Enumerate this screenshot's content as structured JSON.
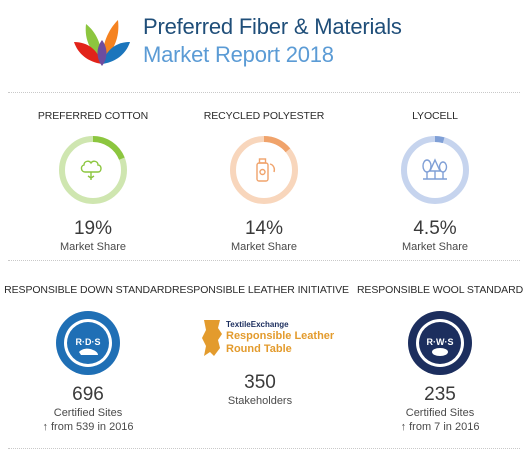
{
  "header": {
    "title_line1": "Preferred Fiber & Materials",
    "title_line2": "Market Report 2018",
    "logo_icon": "leaf-petals-logo"
  },
  "colors": {
    "title_dark": "#1f4e79",
    "title_light": "#5b9bd5",
    "cotton": "#8cc63f",
    "polyester": "#f0a36b",
    "lyocell": "#7f9fd6",
    "badge_blue": "#1f6fb5",
    "badge_navy": "#1c2e5e",
    "leather_orange": "#e39b2d"
  },
  "fibers": [
    {
      "name": "PREFERRED COTTON",
      "value": "19%",
      "label": "Market Share",
      "share": 0.19,
      "icon": "cotton-plant-icon"
    },
    {
      "name": "RECYCLED POLYESTER",
      "value": "14%",
      "label": "Market Share",
      "share": 0.14,
      "icon": "recycled-bottle-icon"
    },
    {
      "name": "LYOCELL",
      "value": "4.5%",
      "label": "Market Share",
      "share": 0.045,
      "icon": "trees-icon"
    }
  ],
  "standards": [
    {
      "name": "RESPONSIBLE DOWN STANDARD",
      "badge": "R·D·S",
      "value": "696",
      "label": "Certified Sites",
      "note": "↑ from 539 in 2016",
      "icon": "rds-badge-icon"
    },
    {
      "name": "RESPONSIBLE LEATHER INITIATIVE",
      "badge_line1": "TextileExchange",
      "badge_line2": "Responsible Leather",
      "badge_line3": "Round Table",
      "value": "350",
      "label": "Stakeholders",
      "icon": "leather-roundtable-logo"
    },
    {
      "name": "RESPONSIBLE WOOL STANDARD",
      "badge": "R·W·S",
      "value": "235",
      "label": "Certified Sites",
      "note": "↑ from 7 in 2016",
      "icon": "rws-badge-icon"
    }
  ]
}
